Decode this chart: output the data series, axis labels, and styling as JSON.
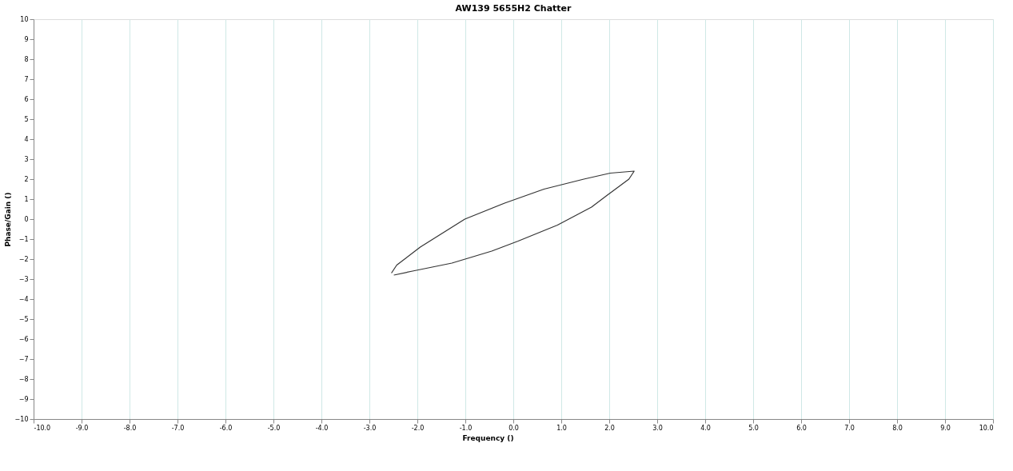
{
  "chart_data": {
    "type": "line",
    "title": "AW139 5655H2 Chatter",
    "xlabel": "Frequency ()",
    "ylabel": "Phase/Gain ()",
    "xlim": [
      -10,
      10
    ],
    "xticks": [
      {
        "value": -10,
        "label": "-10.0"
      },
      {
        "value": -9,
        "label": "-9.0"
      },
      {
        "value": -8,
        "label": "-8.0"
      },
      {
        "value": -7,
        "label": "-7.0"
      },
      {
        "value": -6,
        "label": "-6.0"
      },
      {
        "value": -5,
        "label": "-5.0"
      },
      {
        "value": -4,
        "label": "-4.0"
      },
      {
        "value": -3,
        "label": "-3.0"
      },
      {
        "value": -2,
        "label": "-2.0"
      },
      {
        "value": -1,
        "label": "-1.0"
      },
      {
        "value": 0,
        "label": "0.0"
      },
      {
        "value": 1,
        "label": "1.0"
      },
      {
        "value": 2,
        "label": "2.0"
      },
      {
        "value": 3,
        "label": "3.0"
      },
      {
        "value": 4,
        "label": "4.0"
      },
      {
        "value": 5,
        "label": "5.0"
      },
      {
        "value": 6,
        "label": "6.0"
      },
      {
        "value": 7,
        "label": "7.0"
      },
      {
        "value": 8,
        "label": "8.0"
      },
      {
        "value": 9,
        "label": "9.0"
      },
      {
        "value": 10,
        "label": "10.0"
      }
    ],
    "ylim": [
      -10,
      10
    ],
    "yticks": [
      -10,
      -9,
      -8,
      -7,
      -6,
      -5,
      -4,
      -3,
      -2,
      -1,
      0,
      1,
      2,
      3,
      4,
      5,
      6,
      7,
      8,
      9,
      10
    ],
    "grid": "x",
    "marker": "none",
    "line_style": "solid",
    "series": [
      {
        "color": "#333333",
        "x": [
          -2.54,
          -2.43,
          -1.94,
          -1.01,
          -0.18,
          0.64,
          1.47,
          2.02,
          2.52,
          2.41,
          1.96,
          1.63,
          0.92,
          0.1,
          -0.45,
          -1.28,
          -2.1,
          -2.49
        ],
        "values": [
          -2.7,
          -2.3,
          -1.4,
          0.0,
          0.8,
          1.5,
          2.0,
          2.3,
          2.4,
          2.0,
          1.2,
          0.6,
          -0.3,
          -1.1,
          -1.6,
          -2.2,
          -2.6,
          -2.8
        ]
      }
    ]
  }
}
